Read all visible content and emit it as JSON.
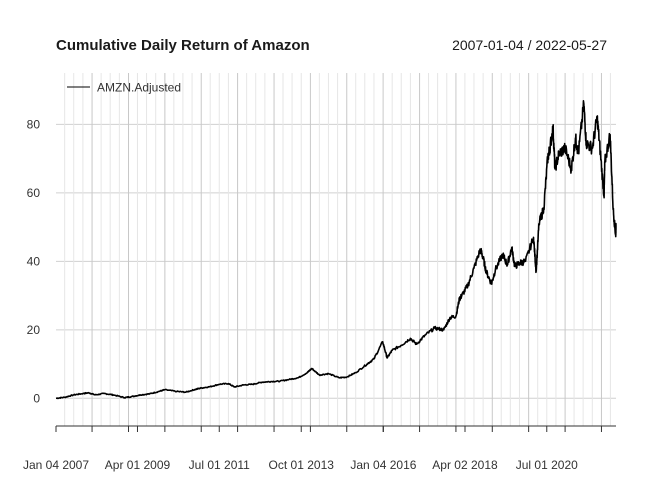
{
  "chart_data": {
    "type": "line",
    "title": "Cumulative Daily Return of Amazon",
    "subtitle": "2007-01-04 / 2022-05-27",
    "xlabel": "",
    "ylabel": "",
    "x_range": [
      "2007-01-04",
      "2022-05-27"
    ],
    "ylim": [
      -4,
      95
    ],
    "y_ticks": [
      0,
      20,
      40,
      60,
      80
    ],
    "x_ticks": [
      {
        "date": "2007-01-04",
        "label": "Jan 04 2007"
      },
      {
        "date": "2009-04-01",
        "label": "Apr 01 2009"
      },
      {
        "date": "2011-07-01",
        "label": "Jul 01 2011"
      },
      {
        "date": "2013-10-01",
        "label": "Oct 01 2013"
      },
      {
        "date": "2016-01-04",
        "label": "Jan 04 2016"
      },
      {
        "date": "2018-04-02",
        "label": "Apr 02 2018"
      },
      {
        "date": "2020-07-01",
        "label": "Jul 01 2020"
      }
    ],
    "grid": true,
    "legend_position": "top-left",
    "series": [
      {
        "name": "AMZN.Adjusted",
        "color": "#000000",
        "points": [
          [
            "2007-01-04",
            0.0
          ],
          [
            "2007-04-01",
            0.3
          ],
          [
            "2007-07-01",
            1.0
          ],
          [
            "2007-10-01",
            1.4
          ],
          [
            "2007-12-01",
            1.6
          ],
          [
            "2008-02-01",
            1.0
          ],
          [
            "2008-05-01",
            1.4
          ],
          [
            "2008-08-01",
            1.0
          ],
          [
            "2008-11-20",
            0.2
          ],
          [
            "2009-02-01",
            0.5
          ],
          [
            "2009-05-01",
            1.0
          ],
          [
            "2009-08-01",
            1.3
          ],
          [
            "2009-11-01",
            2.0
          ],
          [
            "2010-01-01",
            2.5
          ],
          [
            "2010-05-01",
            2.0
          ],
          [
            "2010-08-01",
            1.8
          ],
          [
            "2010-11-01",
            2.6
          ],
          [
            "2011-01-01",
            3.0
          ],
          [
            "2011-04-01",
            3.4
          ],
          [
            "2011-07-01",
            4.1
          ],
          [
            "2011-10-01",
            4.3
          ],
          [
            "2011-12-01",
            3.3
          ],
          [
            "2012-03-01",
            3.9
          ],
          [
            "2012-06-01",
            4.1
          ],
          [
            "2012-09-01",
            4.7
          ],
          [
            "2012-12-01",
            4.9
          ],
          [
            "2013-03-01",
            5.0
          ],
          [
            "2013-06-01",
            5.5
          ],
          [
            "2013-09-01",
            6.0
          ],
          [
            "2013-12-01",
            7.5
          ],
          [
            "2014-01-15",
            8.7
          ],
          [
            "2014-04-01",
            6.8
          ],
          [
            "2014-07-01",
            7.2
          ],
          [
            "2014-10-15",
            6.0
          ],
          [
            "2015-01-01",
            6.2
          ],
          [
            "2015-04-01",
            7.5
          ],
          [
            "2015-07-24",
            10.0
          ],
          [
            "2015-10-01",
            11.5
          ],
          [
            "2015-12-28",
            16.5
          ],
          [
            "2016-02-10",
            11.8
          ],
          [
            "2016-04-01",
            14.0
          ],
          [
            "2016-07-01",
            15.5
          ],
          [
            "2016-10-01",
            17.5
          ],
          [
            "2016-12-01",
            15.8
          ],
          [
            "2017-03-01",
            18.5
          ],
          [
            "2017-06-01",
            20.5
          ],
          [
            "2017-09-01",
            20.0
          ],
          [
            "2017-11-01",
            23.5
          ],
          [
            "2018-01-01",
            24.0
          ],
          [
            "2018-02-05",
            29.0
          ],
          [
            "2018-03-01",
            30.0
          ],
          [
            "2018-05-01",
            33.0
          ],
          [
            "2018-07-01",
            38.0
          ],
          [
            "2018-09-04",
            43.5
          ],
          [
            "2018-10-01",
            41.0
          ],
          [
            "2018-11-01",
            37.0
          ],
          [
            "2018-12-24",
            33.5
          ],
          [
            "2019-02-01",
            37.5
          ],
          [
            "2019-04-15",
            42.0
          ],
          [
            "2019-06-01",
            39.0
          ],
          [
            "2019-07-15",
            44.0
          ],
          [
            "2019-08-15",
            38.5
          ],
          [
            "2019-10-01",
            39.5
          ],
          [
            "2019-12-01",
            40.0
          ],
          [
            "2020-02-19",
            47.0
          ],
          [
            "2020-03-16",
            37.0
          ],
          [
            "2020-04-14",
            51.0
          ],
          [
            "2020-06-01",
            55.5
          ],
          [
            "2020-07-10",
            70.0
          ],
          [
            "2020-08-01",
            73.0
          ],
          [
            "2020-09-02",
            79.0
          ],
          [
            "2020-09-21",
            67.0
          ],
          [
            "2020-11-01",
            71.5
          ],
          [
            "2021-01-01",
            73.0
          ],
          [
            "2021-03-05",
            67.0
          ],
          [
            "2021-04-15",
            76.0
          ],
          [
            "2021-05-15",
            71.5
          ],
          [
            "2021-07-08",
            86.0
          ],
          [
            "2021-08-01",
            74.5
          ],
          [
            "2021-10-01",
            73.0
          ],
          [
            "2021-11-19",
            82.0
          ],
          [
            "2021-12-20",
            72.0
          ],
          [
            "2022-01-27",
            59.0
          ],
          [
            "2022-02-04",
            69.0
          ],
          [
            "2022-03-29",
            77.0
          ],
          [
            "2022-04-29",
            55.0
          ],
          [
            "2022-05-24",
            47.5
          ],
          [
            "2022-05-27",
            50.5
          ]
        ]
      }
    ]
  }
}
